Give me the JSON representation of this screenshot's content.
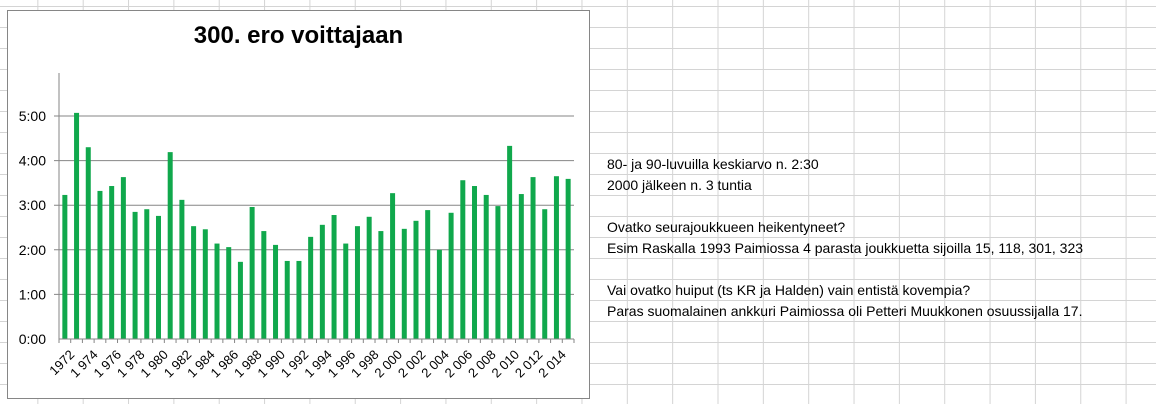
{
  "chart_data": {
    "type": "bar",
    "title": "300. ero voittajaan",
    "xlabel": "",
    "ylabel": "",
    "ylim": [
      0,
      6
    ],
    "y_unit": "hours (h:mm)",
    "yticks": [
      "0:00",
      "1:00",
      "2:00",
      "3:00",
      "4:00",
      "5:00"
    ],
    "grid": true,
    "legend": "none",
    "bar_color": "#10a84c",
    "categories": [
      1972,
      1973,
      1974,
      1975,
      1976,
      1977,
      1978,
      1979,
      1980,
      1981,
      1982,
      1983,
      1984,
      1985,
      1986,
      1987,
      1988,
      1989,
      1990,
      1991,
      1992,
      1993,
      1994,
      1995,
      1996,
      1997,
      1998,
      1999,
      2000,
      2001,
      2002,
      2003,
      2004,
      2005,
      2006,
      2007,
      2008,
      2009,
      2010,
      2011,
      2012,
      2013,
      2014,
      2015
    ],
    "xtick_labels": [
      "1972",
      "1 974",
      "1 976",
      "1 978",
      "1 980",
      "1 982",
      "1 984",
      "1 986",
      "1 988",
      "1 990",
      "1 992",
      "1 994",
      "1 996",
      "1 998",
      "2 000",
      "2 002",
      "2 004",
      "2 006",
      "2 008",
      "2 010",
      "2 012",
      "2 014"
    ],
    "values": [
      3.23,
      5.07,
      4.3,
      3.32,
      3.43,
      3.63,
      2.85,
      2.91,
      2.76,
      4.19,
      3.12,
      2.53,
      2.46,
      2.14,
      2.06,
      1.73,
      2.96,
      2.42,
      2.11,
      1.75,
      1.75,
      2.29,
      2.56,
      2.78,
      2.14,
      2.53,
      2.74,
      2.42,
      3.27,
      2.47,
      2.65,
      2.89,
      2.0,
      2.83,
      3.56,
      3.43,
      3.23,
      2.98,
      4.33,
      3.25,
      3.63,
      2.91,
      3.65,
      3.59
    ],
    "values_hmm": [
      "3:14",
      "5:04",
      "4:18",
      "3:19",
      "3:26",
      "3:38",
      "2:51",
      "2:55",
      "2:46",
      "4:11",
      "3:07",
      "2:32",
      "2:28",
      "2:08",
      "2:04",
      "1:44",
      "2:58",
      "2:25",
      "2:07",
      "1:45",
      "1:45",
      "2:17",
      "2:33",
      "2:47",
      "2:08",
      "2:32",
      "2:44",
      "2:25",
      "3:16",
      "2:28",
      "2:39",
      "2:53",
      "2:00",
      "2:50",
      "3:34",
      "3:26",
      "3:14",
      "2:59",
      "4:20",
      "3:15",
      "3:38",
      "2:55",
      "3:39",
      "3:35"
    ]
  },
  "notes": [
    "80- ja 90-luvuilla keskiarvo n. 2:30",
    "2000 jälkeen n. 3 tuntia",
    "",
    "Ovatko seurajoukkueen heikentyneet?",
    "Esim Raskalla 1993 Paimiossa 4 parasta joukkuetta sijoilla 15, 118, 301, 323",
    "",
    "Vai ovatko huiput (ts KR ja Halden) vain entistä kovempia?",
    "Paras suomalainen ankkuri Paimiossa oli Petteri Muukkonen osuussijalla 17."
  ]
}
